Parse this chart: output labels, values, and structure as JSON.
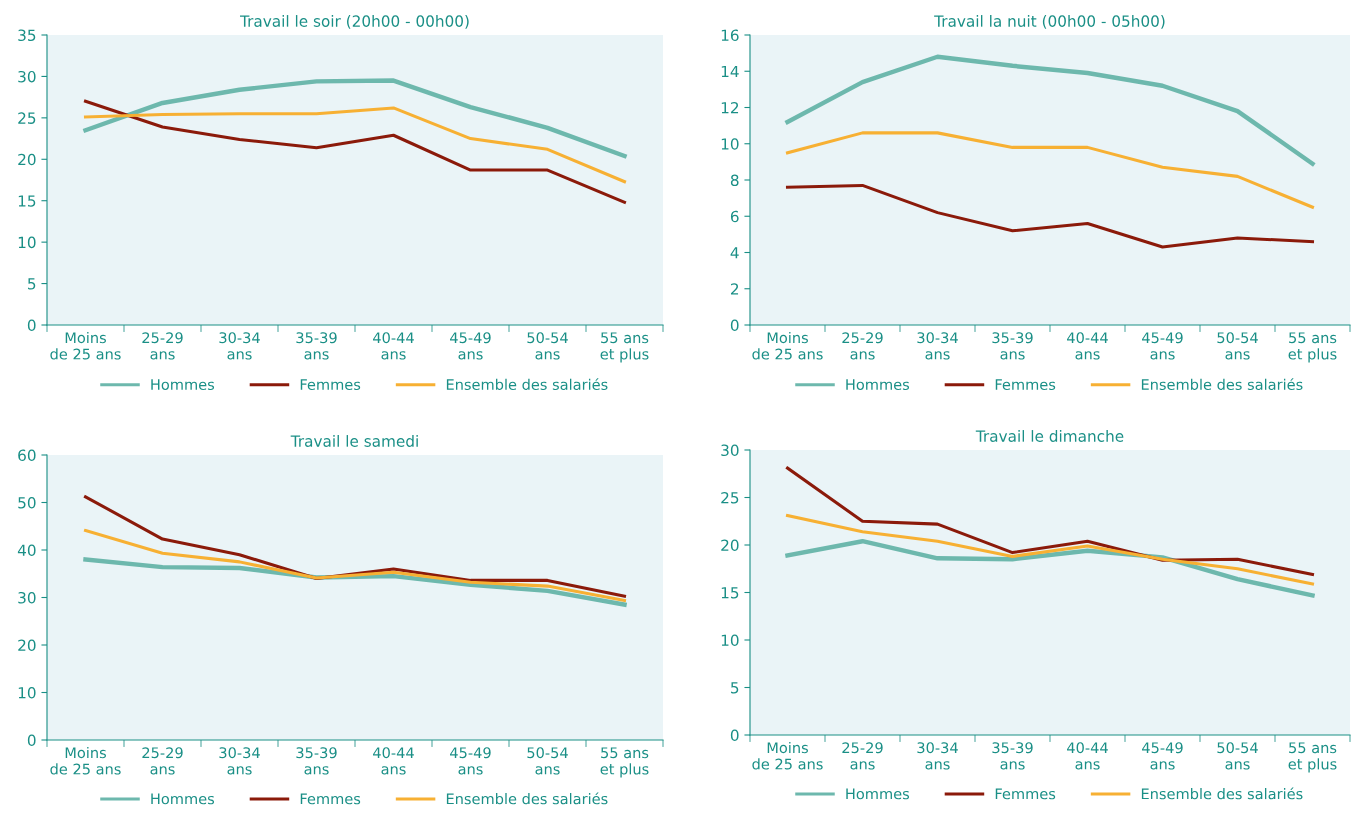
{
  "chart_data": [
    {
      "type": "line",
      "title": "Travail le soir (20h00 - 00h00)",
      "categories": [
        "Moins\nde 25 ans",
        "25-29\nans",
        "30-34\nans",
        "35-39\nans",
        "40-44\nans",
        "45-49\nans",
        "50-54\nans",
        "55 ans\net plus"
      ],
      "ylim": [
        0,
        35
      ],
      "yticks": [
        0,
        5,
        10,
        15,
        20,
        25,
        30,
        35
      ],
      "grid": false,
      "legend": "bottom",
      "marker": "none",
      "line_style": "solid",
      "series": [
        {
          "name": "Hommes",
          "color": "#6db8ad",
          "values": [
            23.5,
            26.8,
            28.4,
            29.4,
            29.5,
            26.3,
            23.8,
            20.4
          ]
        },
        {
          "name": "Femmes",
          "color": "#8b1a0a",
          "values": [
            27.0,
            23.9,
            22.4,
            21.4,
            22.9,
            18.7,
            18.7,
            14.8
          ]
        },
        {
          "name": "Ensemble des salariés",
          "color": "#f7b033",
          "values": [
            25.1,
            25.4,
            25.5,
            25.5,
            26.2,
            22.5,
            21.2,
            17.3
          ]
        }
      ]
    },
    {
      "type": "line",
      "title": "Travail la nuit (00h00 - 05h00)",
      "categories": [
        "Moins\nde 25 ans",
        "25-29\nans",
        "30-34\nans",
        "35-39\nans",
        "40-44\nans",
        "45-49\nans",
        "50-54\nans",
        "55 ans\net plus"
      ],
      "ylim": [
        0,
        16
      ],
      "yticks": [
        0,
        2,
        4,
        6,
        8,
        10,
        12,
        14,
        16
      ],
      "grid": false,
      "legend": "bottom",
      "marker": "none",
      "line_style": "solid",
      "series": [
        {
          "name": "Hommes",
          "color": "#6db8ad",
          "values": [
            11.2,
            13.4,
            14.8,
            14.3,
            13.9,
            13.2,
            11.8,
            8.9
          ]
        },
        {
          "name": "Femmes",
          "color": "#8b1a0a",
          "values": [
            7.6,
            7.7,
            6.2,
            5.2,
            5.6,
            4.3,
            4.8,
            4.6
          ]
        },
        {
          "name": "Ensemble des salariés",
          "color": "#f7b033",
          "values": [
            9.5,
            10.6,
            10.6,
            9.8,
            9.8,
            8.7,
            8.2,
            6.5
          ]
        }
      ]
    },
    {
      "type": "line",
      "title": "Travail le samedi",
      "categories": [
        "Moins\nde 25 ans",
        "25-29\nans",
        "30-34\nans",
        "35-39\nans",
        "40-44\nans",
        "45-49\nans",
        "50-54\nans",
        "55 ans\net plus"
      ],
      "ylim": [
        0,
        60
      ],
      "yticks": [
        0,
        10,
        20,
        30,
        40,
        50,
        60
      ],
      "grid": false,
      "legend": "bottom",
      "marker": "none",
      "line_style": "solid",
      "series": [
        {
          "name": "Hommes",
          "color": "#6db8ad",
          "values": [
            38.0,
            36.4,
            36.2,
            34.2,
            34.5,
            32.7,
            31.4,
            28.5
          ]
        },
        {
          "name": "Femmes",
          "color": "#8b1a0a",
          "values": [
            51.2,
            42.3,
            39.0,
            34.0,
            36.0,
            33.6,
            33.6,
            30.3
          ]
        },
        {
          "name": "Ensemble des salariés",
          "color": "#f7b033",
          "values": [
            44.1,
            39.3,
            37.5,
            34.1,
            35.3,
            33.2,
            32.4,
            29.4
          ]
        }
      ]
    },
    {
      "type": "line",
      "title": "Travail le dimanche",
      "categories": [
        "Moins\nde 25 ans",
        "25-29\nans",
        "30-34\nans",
        "35-39\nans",
        "40-44\nans",
        "45-49\nans",
        "50-54\nans",
        "55 ans\net plus"
      ],
      "ylim": [
        0,
        30
      ],
      "yticks": [
        0,
        5,
        10,
        15,
        20,
        25,
        30
      ],
      "grid": false,
      "legend": "bottom",
      "marker": "none",
      "line_style": "solid",
      "series": [
        {
          "name": "Hommes",
          "color": "#6db8ad",
          "values": [
            18.9,
            20.4,
            18.6,
            18.5,
            19.4,
            18.7,
            16.4,
            14.7
          ]
        },
        {
          "name": "Femmes",
          "color": "#8b1a0a",
          "values": [
            28.1,
            22.5,
            22.2,
            19.2,
            20.4,
            18.4,
            18.5,
            16.9
          ]
        },
        {
          "name": "Ensemble des salariés",
          "color": "#f7b033",
          "values": [
            23.1,
            21.4,
            20.4,
            18.8,
            19.9,
            18.5,
            17.5,
            15.9
          ]
        }
      ]
    }
  ]
}
